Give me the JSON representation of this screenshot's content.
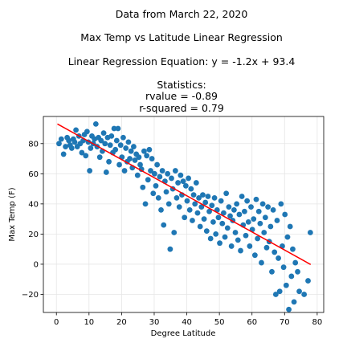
{
  "chart_data": {
    "type": "scatter",
    "title_lines": [
      "Data from March 22, 2020",
      "Max Temp vs Latitude Linear Regression",
      "Linear Regression Equation: y = -1.2x + 93.4",
      "Statistics:",
      "rvalue = -0.89",
      "r-squared = 0.79"
    ],
    "xlabel": "Degree Latitude",
    "ylabel": "Max Temp (F)",
    "xlim": [
      -4,
      82
    ],
    "ylim": [
      -32,
      98
    ],
    "xticks": [
      0,
      10,
      20,
      30,
      40,
      50,
      60,
      70,
      80
    ],
    "yticks": [
      -20,
      0,
      20,
      40,
      60,
      80
    ],
    "grid": true,
    "colors": {
      "points": "#1f77b4",
      "regression": "#ff0000",
      "grid": "#e6e6e6",
      "axes": "#000000"
    },
    "regression": {
      "slope": -1.2,
      "intercept": 93.4,
      "x_range": [
        0.3,
        78
      ]
    },
    "points": [
      [
        0.8,
        80
      ],
      [
        1.5,
        83
      ],
      [
        2.2,
        73
      ],
      [
        2.8,
        78
      ],
      [
        3.3,
        84
      ],
      [
        3.8,
        82
      ],
      [
        4.2,
        79
      ],
      [
        4.7,
        77
      ],
      [
        5.2,
        83
      ],
      [
        5.6,
        81
      ],
      [
        6.0,
        89
      ],
      [
        6.4,
        78
      ],
      [
        6.9,
        85
      ],
      [
        7.3,
        80
      ],
      [
        7.8,
        74
      ],
      [
        8.2,
        82
      ],
      [
        8.6,
        86
      ],
      [
        9.0,
        72
      ],
      [
        9.4,
        88
      ],
      [
        9.8,
        81
      ],
      [
        10.2,
        62
      ],
      [
        10.5,
        77
      ],
      [
        10.9,
        85
      ],
      [
        11.3,
        80
      ],
      [
        11.7,
        83
      ],
      [
        12.1,
        93
      ],
      [
        12.5,
        78
      ],
      [
        12.9,
        84
      ],
      [
        13.3,
        71
      ],
      [
        13.7,
        82
      ],
      [
        14.1,
        75
      ],
      [
        14.5,
        87
      ],
      [
        14.9,
        80
      ],
      [
        15.3,
        61
      ],
      [
        15.7,
        84
      ],
      [
        16.1,
        68
      ],
      [
        16.5,
        79
      ],
      [
        16.9,
        85
      ],
      [
        17.3,
        74
      ],
      [
        17.7,
        90
      ],
      [
        18.1,
        76
      ],
      [
        18.5,
        82
      ],
      [
        18.9,
        90
      ],
      [
        19.3,
        66
      ],
      [
        19.7,
        79
      ],
      [
        20.1,
        71
      ],
      [
        20.5,
        84
      ],
      [
        20.9,
        62
      ],
      [
        21.3,
        77
      ],
      [
        21.7,
        68
      ],
      [
        22.1,
        81
      ],
      [
        22.5,
        70
      ],
      [
        22.9,
        75
      ],
      [
        23.3,
        64
      ],
      [
        23.7,
        78
      ],
      [
        24.1,
        69
      ],
      [
        24.5,
        73
      ],
      [
        24.9,
        59
      ],
      [
        25.3,
        71
      ],
      [
        25.7,
        66
      ],
      [
        26.1,
        63
      ],
      [
        26.5,
        51
      ],
      [
        26.9,
        75
      ],
      [
        27.3,
        40
      ],
      [
        27.7,
        72
      ],
      [
        28.1,
        56
      ],
      [
        28.5,
        76
      ],
      [
        28.9,
        62
      ],
      [
        29.3,
        70
      ],
      [
        29.7,
        47
      ],
      [
        30.1,
        60
      ],
      [
        30.5,
        52
      ],
      [
        30.9,
        66
      ],
      [
        31.3,
        44
      ],
      [
        31.7,
        58
      ],
      [
        32.1,
        36
      ],
      [
        32.5,
        62
      ],
      [
        32.9,
        26
      ],
      [
        33.3,
        55
      ],
      [
        33.7,
        48
      ],
      [
        34.1,
        60
      ],
      [
        34.5,
        40
      ],
      [
        34.9,
        10
      ],
      [
        35.3,
        57
      ],
      [
        35.7,
        50
      ],
      [
        36.1,
        21
      ],
      [
        36.5,
        62
      ],
      [
        36.9,
        44
      ],
      [
        37.3,
        54
      ],
      [
        37.7,
        38
      ],
      [
        38.1,
        59
      ],
      [
        38.5,
        46
      ],
      [
        38.9,
        55
      ],
      [
        39.3,
        31
      ],
      [
        39.7,
        52
      ],
      [
        40.1,
        42
      ],
      [
        40.5,
        57
      ],
      [
        40.9,
        36
      ],
      [
        41.3,
        50
      ],
      [
        41.7,
        29
      ],
      [
        42.1,
        46
      ],
      [
        42.5,
        40
      ],
      [
        42.9,
        54
      ],
      [
        43.3,
        34
      ],
      [
        43.7,
        44
      ],
      [
        44.1,
        25
      ],
      [
        44.5,
        38
      ],
      [
        44.9,
        46
      ],
      [
        45.3,
        30
      ],
      [
        45.7,
        41
      ],
      [
        46.1,
        22
      ],
      [
        46.5,
        45
      ],
      [
        46.9,
        35
      ],
      [
        47.3,
        17
      ],
      [
        47.7,
        39
      ],
      [
        48.1,
        28
      ],
      [
        48.5,
        44
      ],
      [
        48.9,
        20
      ],
      [
        49.3,
        36
      ],
      [
        49.7,
        31
      ],
      [
        50.1,
        14
      ],
      [
        50.5,
        42
      ],
      [
        50.9,
        27
      ],
      [
        51.3,
        34
      ],
      [
        51.7,
        18
      ],
      [
        52.1,
        47
      ],
      [
        52.5,
        24
      ],
      [
        52.9,
        38
      ],
      [
        53.3,
        32
      ],
      [
        53.7,
        12
      ],
      [
        54.1,
        29
      ],
      [
        54.5,
        36
      ],
      [
        54.9,
        21
      ],
      [
        55.3,
        40
      ],
      [
        55.7,
        16
      ],
      [
        56.1,
        33
      ],
      [
        56.5,
        9
      ],
      [
        56.9,
        45
      ],
      [
        57.3,
        26
      ],
      [
        57.7,
        35
      ],
      [
        58.1,
        19
      ],
      [
        58.5,
        42
      ],
      [
        58.9,
        28
      ],
      [
        59.3,
        12
      ],
      [
        59.7,
        38
      ],
      [
        60.1,
        23
      ],
      [
        60.5,
        30
      ],
      [
        60.9,
        6
      ],
      [
        61.3,
        43
      ],
      [
        61.7,
        17
      ],
      [
        62.1,
        35
      ],
      [
        62.5,
        27
      ],
      [
        62.9,
        1
      ],
      [
        63.3,
        40
      ],
      [
        63.7,
        21
      ],
      [
        64.1,
        31
      ],
      [
        64.5,
        11
      ],
      [
        64.9,
        38
      ],
      [
        65.3,
        15
      ],
      [
        65.7,
        25
      ],
      [
        66.1,
        -5
      ],
      [
        66.5,
        36
      ],
      [
        66.9,
        8
      ],
      [
        67.3,
        -20
      ],
      [
        67.7,
        29
      ],
      [
        68.1,
        4
      ],
      [
        68.5,
        -18
      ],
      [
        68.9,
        40
      ],
      [
        69.3,
        12
      ],
      [
        69.7,
        -2
      ],
      [
        70.1,
        33
      ],
      [
        70.5,
        -14
      ],
      [
        70.9,
        18
      ],
      [
        71.3,
        -30
      ],
      [
        71.7,
        25
      ],
      [
        72.1,
        -8
      ],
      [
        72.5,
        10
      ],
      [
        72.9,
        -25
      ],
      [
        73.3,
        1
      ],
      [
        74.0,
        -5
      ],
      [
        74.5,
        -18
      ],
      [
        76.0,
        -20
      ],
      [
        77.2,
        -11
      ],
      [
        77.9,
        21
      ]
    ]
  }
}
